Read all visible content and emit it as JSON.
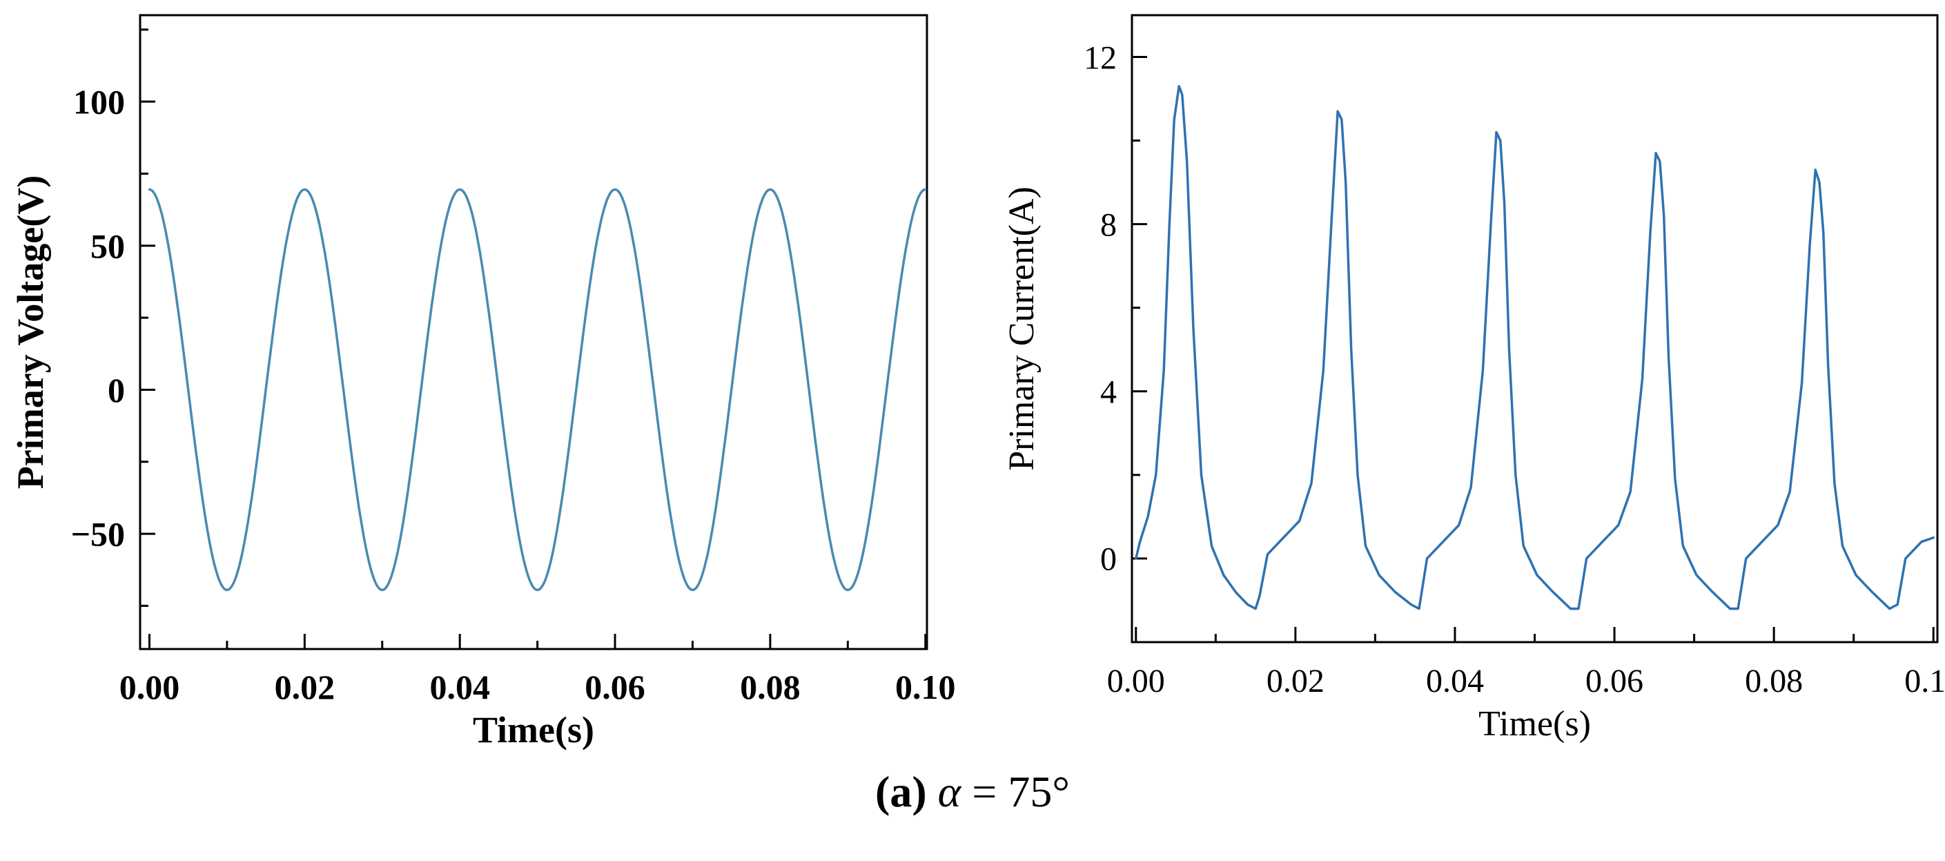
{
  "chart_data": [
    {
      "type": "line",
      "title": "",
      "xlabel": "Time(s)",
      "ylabel": "Primary Voltage(V)",
      "xlim": [
        -0.0012,
        0.1002
      ],
      "ylim": [
        -90,
        130
      ],
      "xticks": [
        0.0,
        0.02,
        0.04,
        0.06,
        0.08,
        0.1
      ],
      "xtick_labels": [
        "0.00",
        "0.02",
        "0.04",
        "0.06",
        "0.08",
        "0.10"
      ],
      "yticks": [
        -50,
        0,
        50,
        100
      ],
      "ytick_labels": [
        "−50",
        "0",
        "50",
        "100"
      ],
      "line_color": "#4a8ab0",
      "series": [
        {
          "name": "Primary Voltage",
          "x": [
            0.0,
            0.0025,
            0.005,
            0.0075,
            0.01,
            0.0125,
            0.015,
            0.0175,
            0.02,
            0.0225,
            0.025,
            0.0275,
            0.03,
            0.0325,
            0.035,
            0.0375,
            0.04,
            0.0425,
            0.045,
            0.0475,
            0.05,
            0.0525,
            0.055,
            0.0575,
            0.06,
            0.0625,
            0.065,
            0.0675,
            0.07,
            0.0725,
            0.075,
            0.0775,
            0.08,
            0.0825,
            0.085,
            0.0875,
            0.09,
            0.0925,
            0.095,
            0.0975,
            0.1
          ],
          "y": [
            69.5,
            49.1,
            0.0,
            -49.1,
            -69.5,
            -49.1,
            0.0,
            49.1,
            69.5,
            49.1,
            0.0,
            -49.1,
            -69.5,
            -49.1,
            0.0,
            49.1,
            69.5,
            49.1,
            0.0,
            -49.1,
            -69.5,
            -49.1,
            0.0,
            49.1,
            69.5,
            49.1,
            0.0,
            -49.1,
            -69.5,
            -49.1,
            0.0,
            49.1,
            69.5,
            49.1,
            0.0,
            -49.1,
            -69.5,
            -49.1,
            0.0,
            49.1,
            68.0
          ]
        }
      ]
    },
    {
      "type": "line",
      "title": "",
      "xlabel": "Time(s)",
      "ylabel": "Primary Current(A)",
      "xlim": [
        -0.0005,
        0.1005
      ],
      "ylim": [
        -2,
        13
      ],
      "xticks": [
        0.0,
        0.02,
        0.04,
        0.06,
        0.08,
        0.1
      ],
      "xtick_labels": [
        "0.00",
        "0.02",
        "0.04",
        "0.06",
        "0.08",
        "0.10"
      ],
      "yticks": [
        0,
        4,
        8,
        12
      ],
      "ytick_labels": [
        "0",
        "4",
        "8",
        "12"
      ],
      "line_color": "#2f72b0",
      "series": [
        {
          "name": "Primary Current",
          "x": [
            0.0,
            0.0005,
            0.0015,
            0.0025,
            0.0035,
            0.0042,
            0.0048,
            0.0054,
            0.0058,
            0.0064,
            0.0072,
            0.0082,
            0.0095,
            0.011,
            0.0125,
            0.014,
            0.015,
            0.0155,
            0.0165,
            0.0185,
            0.0205,
            0.022,
            0.0235,
            0.0245,
            0.0253,
            0.0258,
            0.0263,
            0.027,
            0.0278,
            0.0288,
            0.0305,
            0.0325,
            0.0345,
            0.0355,
            0.0365,
            0.0385,
            0.0405,
            0.042,
            0.0435,
            0.0445,
            0.0452,
            0.0457,
            0.0462,
            0.0468,
            0.0476,
            0.0486,
            0.0503,
            0.0523,
            0.0545,
            0.0555,
            0.0565,
            0.0585,
            0.0605,
            0.062,
            0.0635,
            0.0645,
            0.0652,
            0.0657,
            0.0662,
            0.0668,
            0.0676,
            0.0686,
            0.0703,
            0.0723,
            0.0745,
            0.0755,
            0.0765,
            0.0785,
            0.0805,
            0.082,
            0.0835,
            0.0845,
            0.0852,
            0.0857,
            0.0862,
            0.0868,
            0.0876,
            0.0886,
            0.0903,
            0.0923,
            0.0945,
            0.0955,
            0.0965,
            0.0985,
            0.1
          ],
          "y": [
            0.0,
            0.4,
            1.0,
            2.0,
            4.5,
            8.0,
            10.5,
            11.3,
            11.1,
            9.5,
            5.5,
            2.0,
            0.3,
            -0.4,
            -0.8,
            -1.1,
            -1.2,
            -0.9,
            0.1,
            0.5,
            0.9,
            1.8,
            4.5,
            8.0,
            10.7,
            10.5,
            9.0,
            5.0,
            2.0,
            0.3,
            -0.4,
            -0.8,
            -1.1,
            -1.2,
            0.0,
            0.4,
            0.8,
            1.7,
            4.5,
            8.0,
            10.2,
            10.0,
            8.5,
            5.0,
            2.0,
            0.3,
            -0.4,
            -0.8,
            -1.2,
            -1.2,
            0.0,
            0.4,
            0.8,
            1.6,
            4.3,
            7.8,
            9.7,
            9.5,
            8.2,
            4.8,
            1.9,
            0.3,
            -0.4,
            -0.8,
            -1.2,
            -1.2,
            0.0,
            0.4,
            0.8,
            1.6,
            4.2,
            7.5,
            9.3,
            9.0,
            7.8,
            4.6,
            1.8,
            0.3,
            -0.4,
            -0.8,
            -1.2,
            -1.1,
            0.0,
            0.4,
            0.5
          ]
        }
      ]
    }
  ],
  "caption": {
    "label": "(a)",
    "symbol": "α",
    "rest": " = 75°"
  }
}
